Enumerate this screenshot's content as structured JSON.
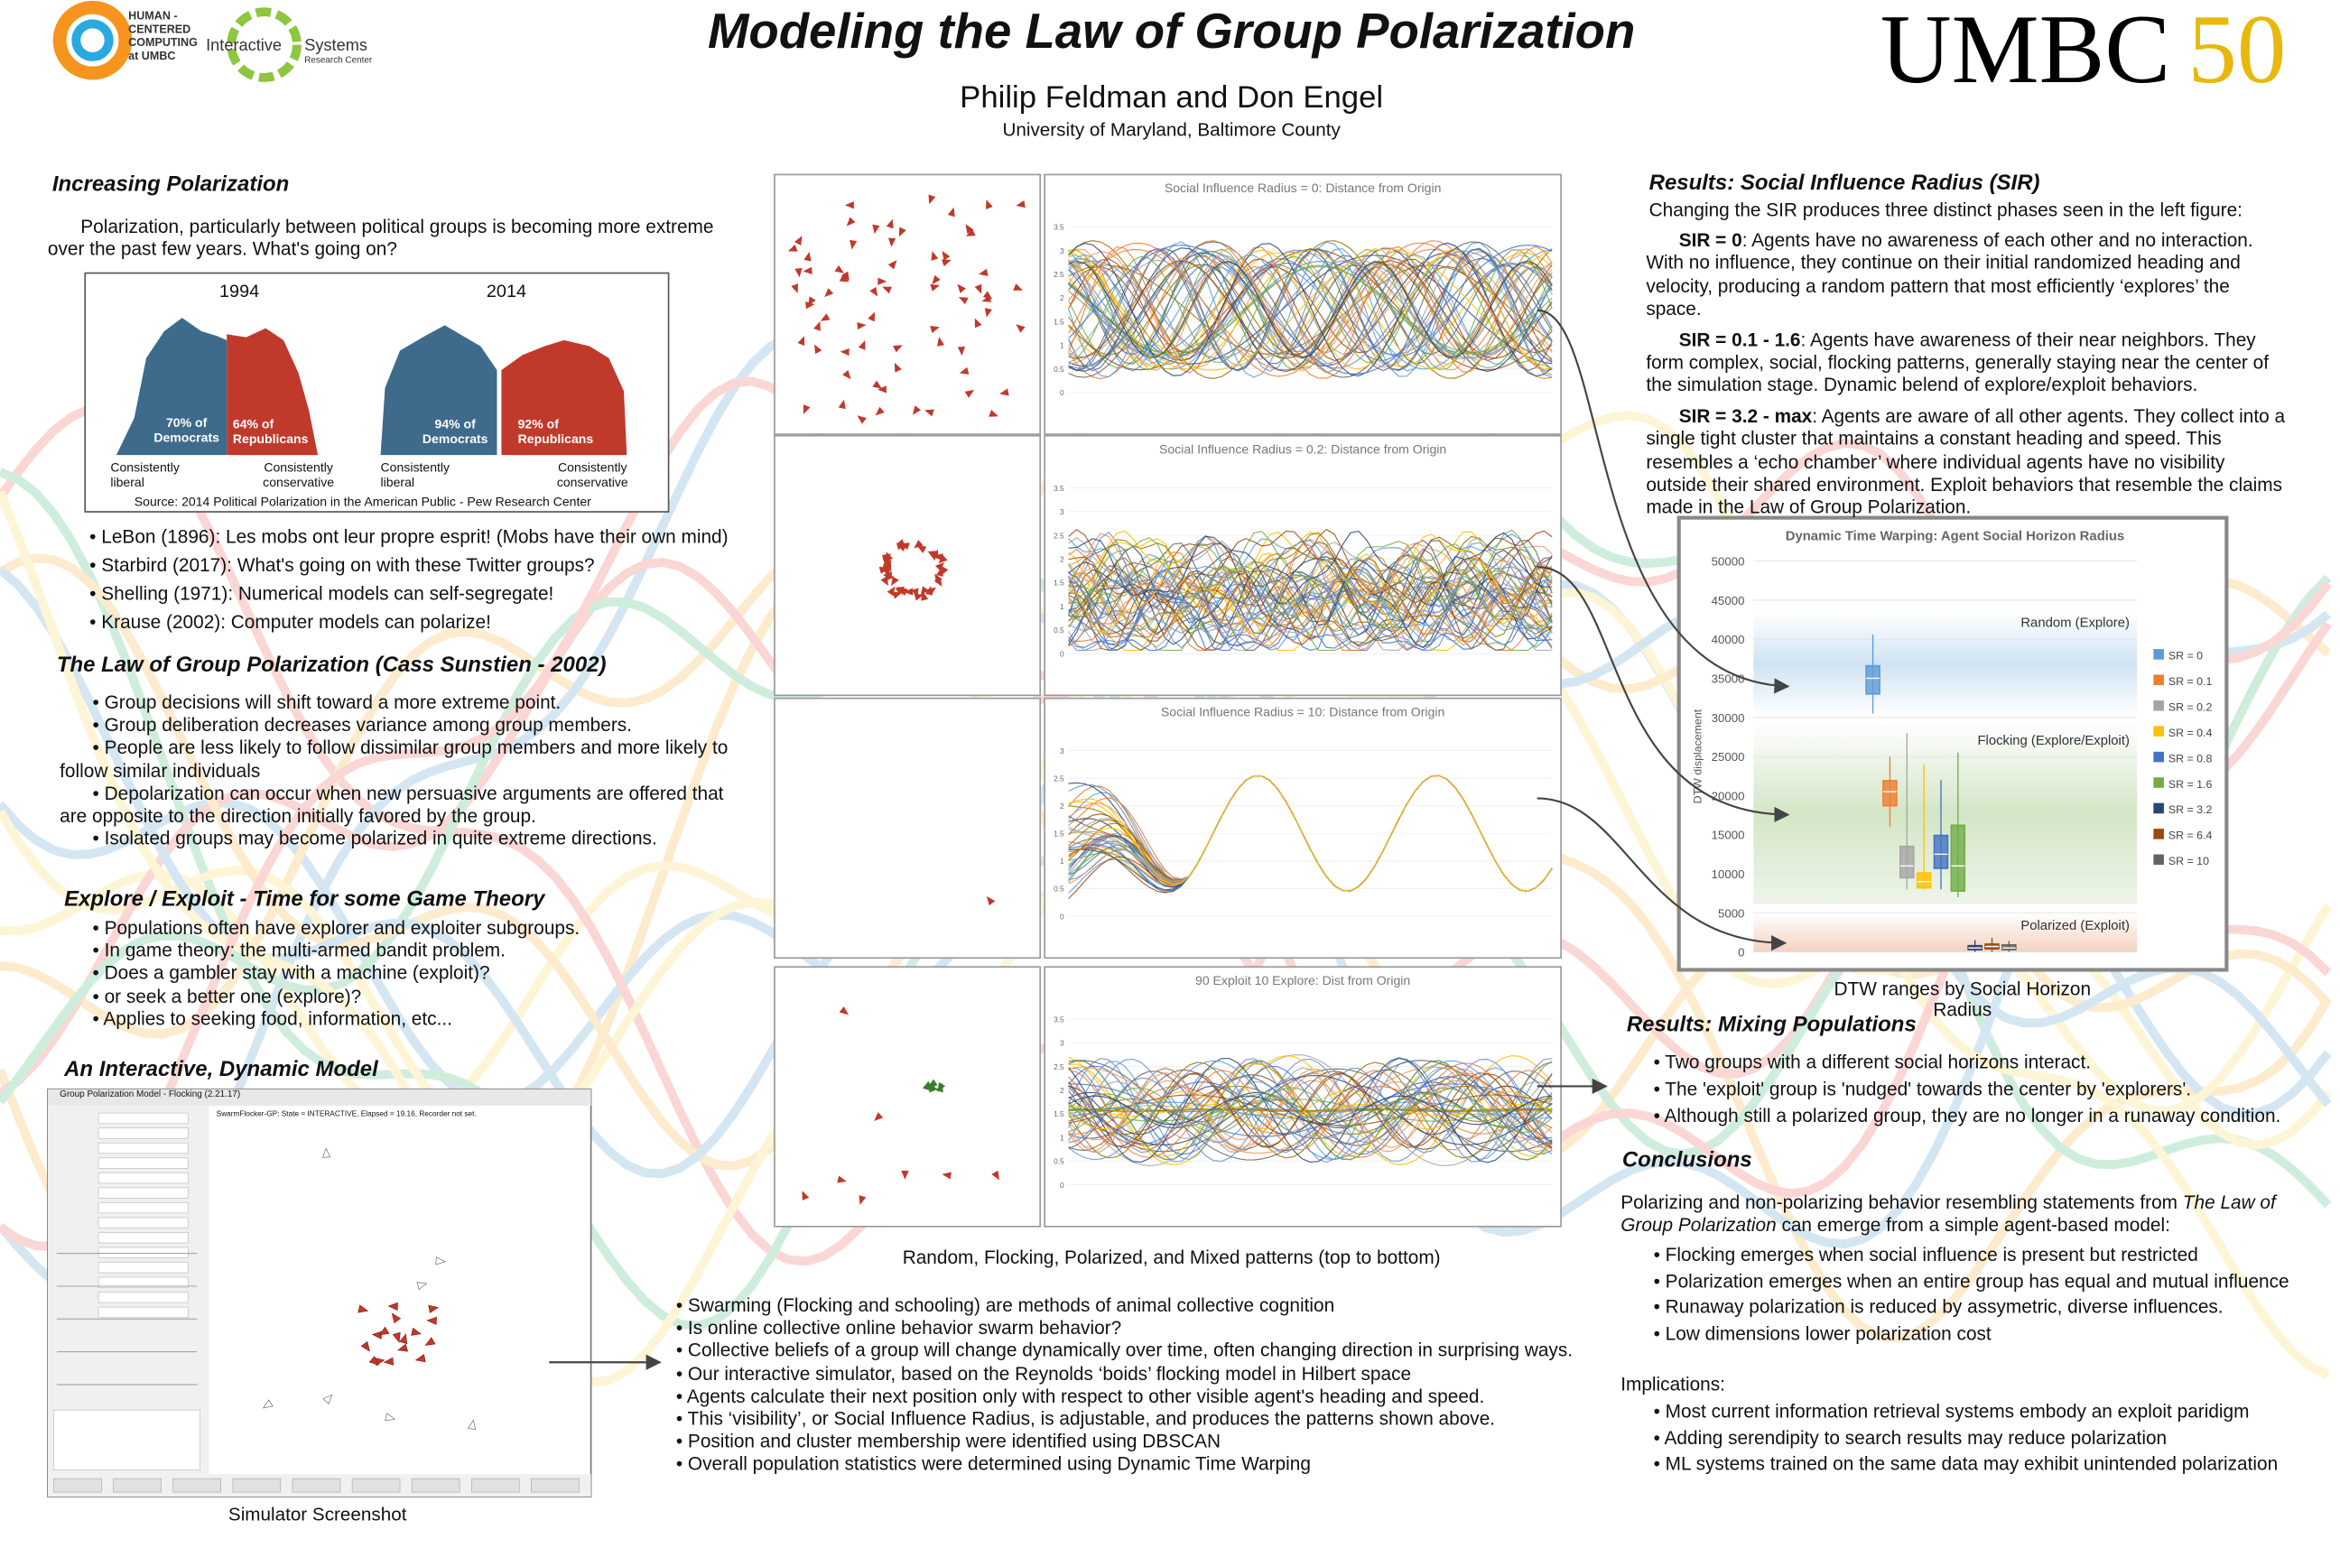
{
  "header": {
    "title": "Modeling the Law of Group Polarization",
    "authors": "Philip Feldman and Don Engel",
    "affiliation": "University of Maryland, Baltimore County",
    "logo_hcc": [
      "HUMAN -",
      "CENTERED",
      "COMPUTING",
      "at UMBC"
    ],
    "logo_isrc": {
      "line1": "Interactive",
      "line2": "Systems",
      "line3": "Research Center"
    },
    "logo_umbc": {
      "name": "UMBC",
      "number": "50"
    }
  },
  "left": {
    "increasing": {
      "heading": "Increasing Polarization",
      "text": "Polarization, particularly between political groups is becoming more extreme over the past few years. What's going on?",
      "figure": {
        "year_a": "1994",
        "year_b": "2014",
        "dem_a": "70% of Democrats",
        "rep_a": "64% of Republicans",
        "dem_b": "94% of Democrats",
        "rep_b": "92% of Republicans",
        "liberal": "Consistently liberal",
        "conservative": "Consistently conservative",
        "source": "Source: 2014 Political Polarization in the American Public - Pew Research Center"
      },
      "bullets": [
        "LeBon (1896): Les mobs ont leur propre esprit! (Mobs have their own mind)",
        "Starbird (2017): What's going on with these Twitter groups?",
        "Shelling (1971): Numerical models can self-segregate!",
        "Krause (2002): Computer models can polarize!"
      ]
    },
    "law": {
      "heading": "The Law of Group Polarization (Cass Sunstien - 2002)",
      "bullets": [
        "Group decisions will shift toward a more extreme point.",
        "Group deliberation decreases variance among group members.",
        "People are less likely to follow dissimilar group members and more likely to follow similar individuals",
        "Depolarization can occur when new persuasive arguments are offered that are opposite to the direction initially favored by the group.",
        "Isolated groups may become polarized in quite extreme directions."
      ]
    },
    "explore": {
      "heading": "Explore / Exploit - Time for some Game Theory",
      "bullets": [
        "Populations often have explorer and exploiter subgroups.",
        "In game theory: the multi-armed bandit problem.",
        "Does a gambler stay with a machine (exploit)?",
        "or seek a better one (explore)?",
        "Applies to seeking food, information, etc..."
      ]
    },
    "model": {
      "heading": "An Interactive, Dynamic Model",
      "window_title": "Group Polarization Model - Flocking (2.21.17)",
      "status": "SwarmFlocker-GP: State = INTERACTIVE, Elapsed = 19.16, Recorder not set.",
      "caption": "Simulator Screenshot"
    }
  },
  "center": {
    "panels": [
      {
        "title": "Social Influence Radius = 0: Distance from Origin",
        "ylim": [
          0,
          3.5
        ],
        "yticks": [
          0,
          0.5,
          1,
          1.5,
          2,
          2.5,
          3,
          3.5
        ]
      },
      {
        "title": "Social Influence Radius = 0.2: Distance from Origin",
        "ylim": [
          0,
          3.5
        ],
        "yticks": [
          0,
          0.5,
          1,
          1.5,
          2,
          2.5,
          3,
          3.5
        ]
      },
      {
        "title": "Social Influence Radius = 10: Distance from Origin",
        "ylim": [
          0,
          3
        ],
        "yticks": [
          0,
          0.5,
          1,
          1.5,
          2,
          2.5,
          3
        ]
      },
      {
        "title": "90 Exploit 10 Explore: Dist from Origin",
        "ylim": [
          0,
          3.5
        ],
        "yticks": [
          0,
          0.5,
          1,
          1.5,
          2,
          2.5,
          3,
          3.5
        ]
      }
    ],
    "caption": "Random, Flocking, Polarized, and Mixed patterns (top to bottom)",
    "bullets": [
      "Swarming (Flocking and schooling) are methods of animal collective cognition",
      "Is online collective online behavior swarm behavior?",
      "Collective beliefs of a group will change dynamically over time, often changing direction in surprising ways.",
      "Our interactive simulator,  based on the Reynolds ‘boids’ flocking model in Hilbert space",
      "Agents calculate their next position only with respect to other visible agent's heading and speed.",
      "This ‘visibility’, or Social Influence Radius,  is adjustable, and produces the patterns shown above.",
      "Position and cluster membership were  identified  using DBSCAN",
      "Overall population statistics were determined using Dynamic Time Warping"
    ]
  },
  "right": {
    "sir": {
      "heading": "Results: Social Influence Radius (SIR)",
      "intro": "Changing the SIR produces three distinct phases seen in the left figure:",
      "items": [
        {
          "label": "SIR = 0",
          "text": ": Agents have no awareness of each other and no interaction. With no influence, they continue on their initial randomized heading and velocity, producing a random pattern that most efficiently ‘explores’ the space."
        },
        {
          "label": "SIR = 0.1 - 1.6",
          "text": ": Agents have awareness of their near neighbors. They form complex, social,  flocking patterns, generally staying near the center of the simulation stage. Dynamic belend of explore/exploit behaviors."
        },
        {
          "label": "SIR = 3.2 - max",
          "text": ": Agents are aware of all other agents. They collect into a single tight cluster that maintains a constant heading and speed. This resembles a ‘echo chamber’ where individual agents have no visibility outside their shared environment. Exploit behaviors that resemble the claims made in the Law of Group Polarization."
        }
      ]
    },
    "dtw_chart": {
      "type": "box",
      "title": "Dynamic Time Warping: Agent Social Horizon Radius",
      "y_label": "DTW displacement",
      "ylim": [
        0,
        50000
      ],
      "yticks": [
        0,
        5000,
        10000,
        15000,
        20000,
        25000,
        30000,
        35000,
        40000,
        45000,
        50000
      ],
      "regions": {
        "random": "Random (Explore)",
        "flocking": "Flocking (Explore/Exploit)",
        "polarized": "Polarized (Exploit)"
      },
      "series": [
        {
          "name": "SR = 0",
          "color": "#5b9bd5",
          "min": 30500,
          "q1": 33000,
          "median": 35000,
          "q3": 36600,
          "max": 40600
        },
        {
          "name": "SR = 0.1",
          "color": "#ed7d31",
          "min": 16000,
          "q1": 18700,
          "median": 20500,
          "q3": 21900,
          "max": 25000
        },
        {
          "name": "SR = 0.2",
          "color": "#a5a5a5",
          "min": 8000,
          "q1": 9500,
          "median": 11000,
          "q3": 13500,
          "max": 28000
        },
        {
          "name": "SR = 0.4",
          "color": "#ffc000",
          "min": 8000,
          "q1": 8200,
          "median": 9000,
          "q3": 10100,
          "max": 24000
        },
        {
          "name": "SR = 0.8",
          "color": "#4472c4",
          "min": 8000,
          "q1": 10700,
          "median": 12500,
          "q3": 14900,
          "max": 22000
        },
        {
          "name": "SR = 1.6",
          "color": "#70ad47",
          "min": 7000,
          "q1": 7800,
          "median": 11000,
          "q3": 16200,
          "max": 25500
        },
        {
          "name": "SR = 3.2",
          "color": "#264478",
          "min": 0,
          "q1": 300,
          "median": 500,
          "q3": 800,
          "max": 1500
        },
        {
          "name": "SR = 6.4",
          "color": "#9e480e",
          "min": 0,
          "q1": 400,
          "median": 700,
          "q3": 1000,
          "max": 1800
        },
        {
          "name": "SR = 10",
          "color": "#636363",
          "min": 0,
          "q1": 300,
          "median": 500,
          "q3": 900,
          "max": 1400
        }
      ],
      "caption": "DTW ranges by Social Horizon Radius"
    },
    "mixing": {
      "heading": "Results: Mixing Populations",
      "bullets": [
        "Two groups with a different social horizons interact.",
        "The 'exploit' group is 'nudged' towards the center by 'explorers'.",
        "Although still a polarized group, they are no longer in a runaway condition."
      ]
    },
    "conclusions": {
      "heading": "Conclusions",
      "intro_before": "Polarizing and non-polarizing behavior resembling statements from ",
      "intro_italic": "The Law of Group Polarization",
      "intro_after": " can emerge from  a simple agent-based model:",
      "bullets": [
        "Flocking emerges when social influence is present but restricted",
        "Polarization emerges when an entire group has equal and mutual influence",
        "Runaway polarization is reduced by assymetric, diverse influences.",
        "Low dimensions lower polarization cost"
      ],
      "implications_heading": "Implications:",
      "implications": [
        "Most current information retrieval systems embody an exploit paridigm",
        "Adding serendipity to search results may reduce polarization",
        "ML systems trained on the same data may exhibit unintended polarization"
      ]
    }
  }
}
